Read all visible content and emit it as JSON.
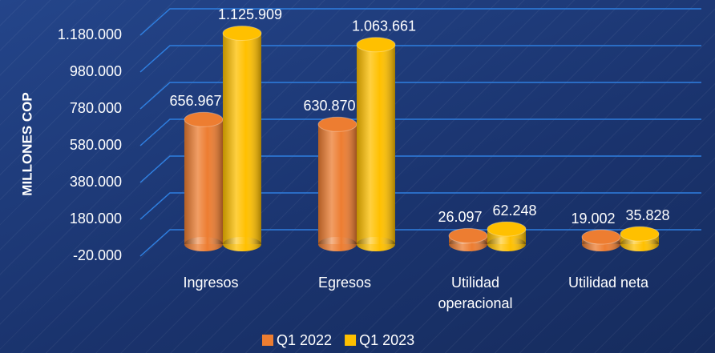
{
  "chart_data": {
    "type": "bar",
    "y_label": "MILLONES COP",
    "categories": [
      "Ingresos",
      "Egresos",
      "Utilidad operacional",
      "Utilidad neta"
    ],
    "series": [
      {
        "name": "Q1 2022",
        "color": "#ed7d31",
        "values": [
          656967,
          630870,
          26097,
          19002
        ],
        "value_labels": [
          "656.967",
          "630.870",
          "26.097",
          "19.002"
        ]
      },
      {
        "name": "Q1 2023",
        "color": "#ffc000",
        "values": [
          1125909,
          1063661,
          62248,
          35828
        ],
        "value_labels": [
          "1.125.909",
          "1.063.661",
          "62.248",
          "35.828"
        ]
      }
    ],
    "ylim": [
      -20000,
      1180000
    ],
    "yticks": [
      {
        "value": -20000,
        "label": "-20.000"
      },
      {
        "value": 180000,
        "label": "180.000"
      },
      {
        "value": 380000,
        "label": "380.000"
      },
      {
        "value": 580000,
        "label": "580.000"
      },
      {
        "value": 780000,
        "label": "780.000"
      },
      {
        "value": 980000,
        "label": "980.000"
      },
      {
        "value": 1180000,
        "label": "1.180.000"
      }
    ],
    "grid": true,
    "legend": "bottom"
  }
}
